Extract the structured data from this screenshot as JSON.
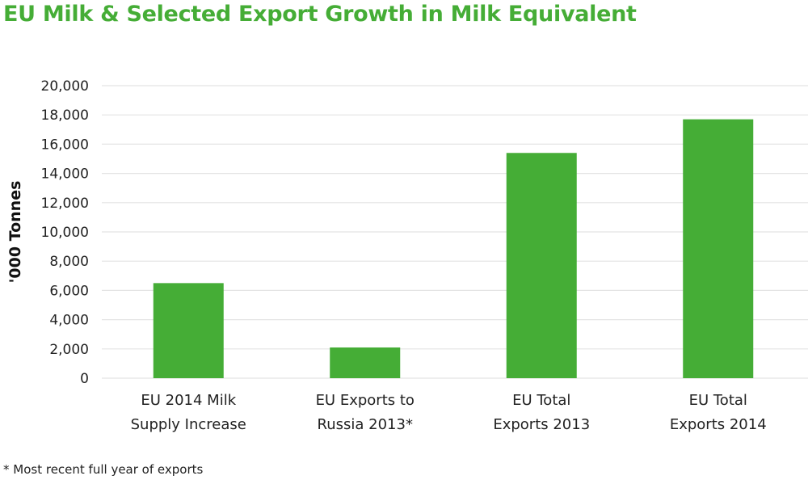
{
  "title": "EU Milk & Selected Export Growth in Milk Equivalent",
  "footnote": "* Most recent full year of exports",
  "colors": {
    "bar": "#45ad36",
    "title": "#45ad36",
    "grid": "#e4e4e4"
  },
  "chart_data": {
    "type": "bar",
    "title": "EU Milk & Selected Export Growth in Milk Equivalent",
    "xlabel": "",
    "ylabel": "'000 Tonnes",
    "ylim": [
      0,
      20000
    ],
    "yticks": [
      0,
      2000,
      4000,
      6000,
      8000,
      10000,
      12000,
      14000,
      16000,
      18000,
      20000
    ],
    "ytick_labels": [
      "0",
      "2,000",
      "4,000",
      "6,000",
      "8,000",
      "10,000",
      "12,000",
      "14,000",
      "16,000",
      "18,000",
      "20,000"
    ],
    "grid": true,
    "categories": [
      [
        "EU 2014 Milk",
        "Supply Increase"
      ],
      [
        "EU Exports to",
        "Russia 2013*"
      ],
      [
        "EU Total",
        "Exports 2013"
      ],
      [
        "EU Total",
        "Exports 2014"
      ]
    ],
    "values": [
      6500,
      2100,
      15400,
      17700
    ]
  }
}
